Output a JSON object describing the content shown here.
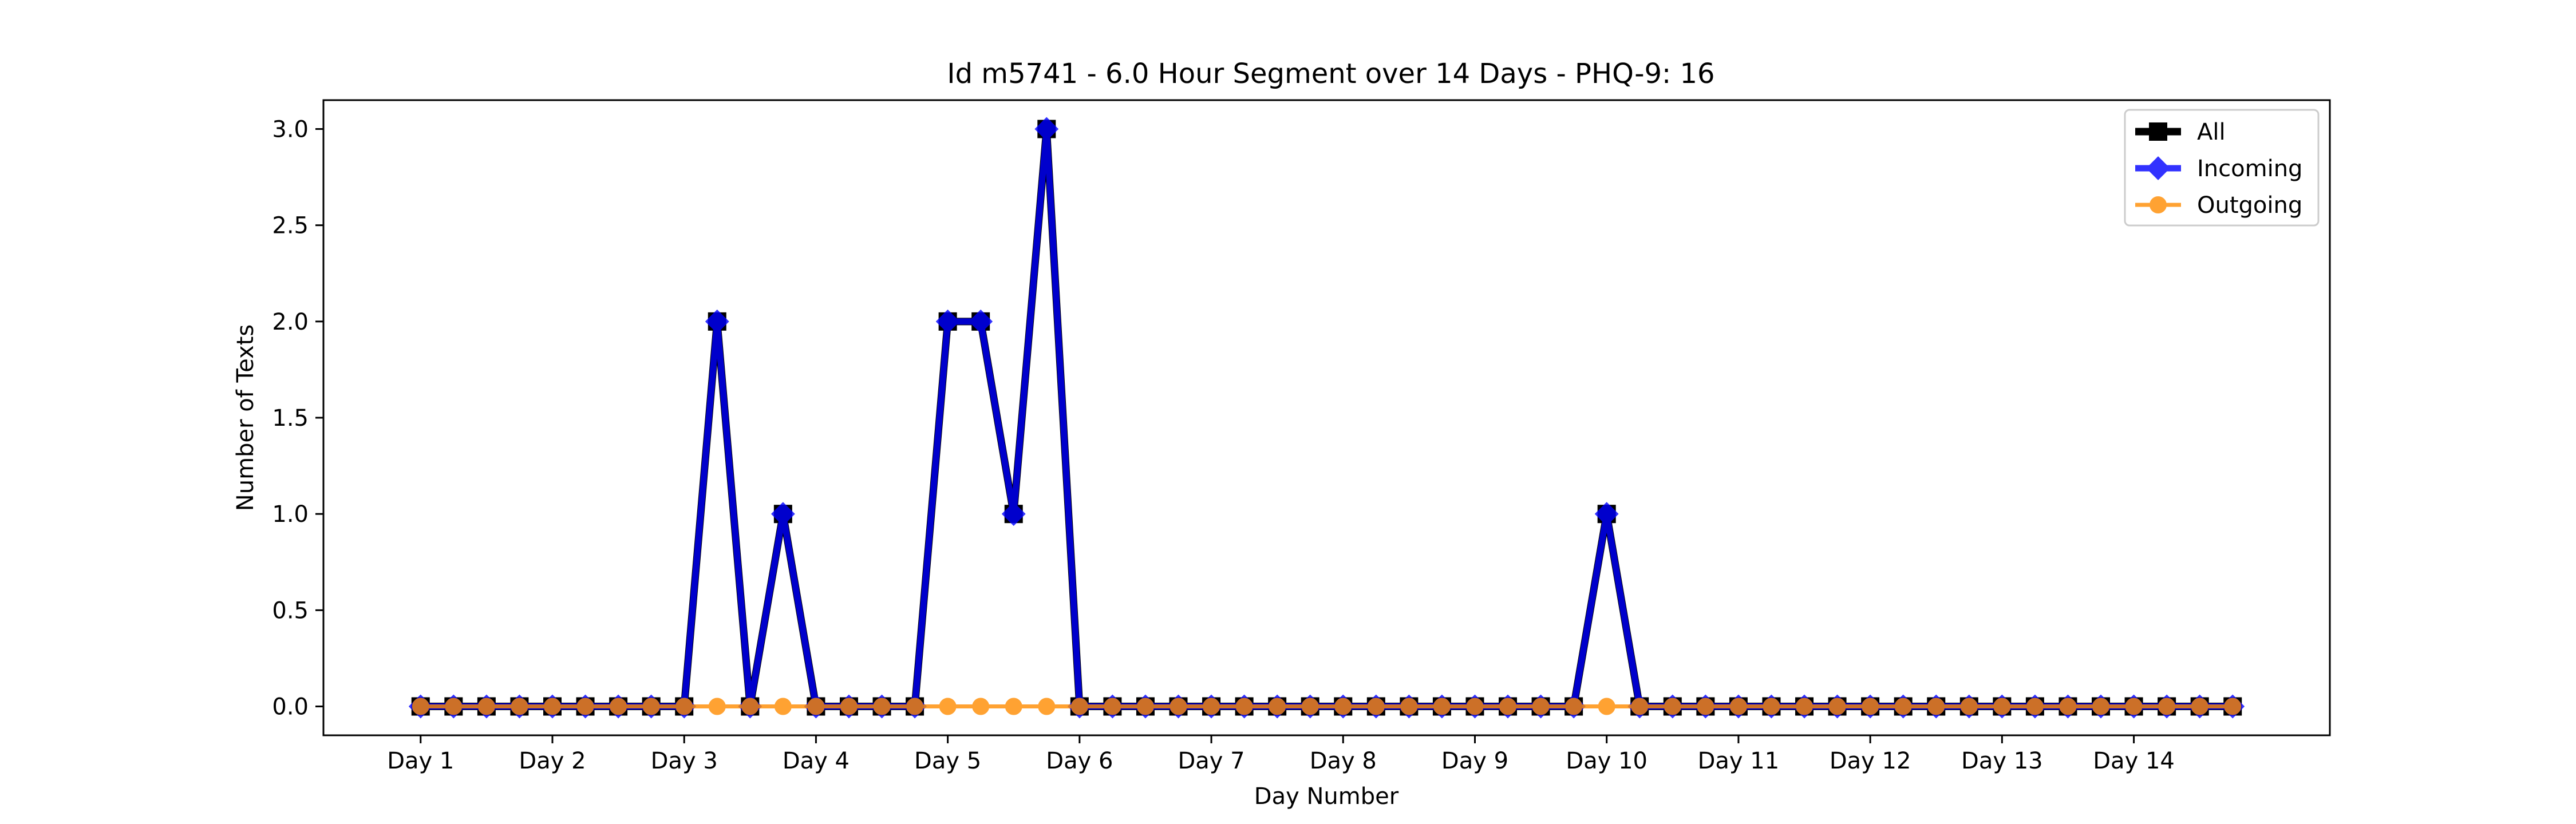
{
  "chart_data": {
    "type": "line",
    "title": "Id m5741 - 6.0 Hour Segment over 14 Days - PHQ-9: 16",
    "xlabel": "Day Number",
    "ylabel": "Number of Texts",
    "x_tick_labels": [
      "Day 1",
      "Day 2",
      "Day 3",
      "Day 4",
      "Day 5",
      "Day 6",
      "Day 7",
      "Day 8",
      "Day 9",
      "Day 10",
      "Day 11",
      "Day 12",
      "Day 13",
      "Day 14"
    ],
    "y_ticks": [
      "0.0",
      "0.5",
      "1.0",
      "1.5",
      "2.0",
      "2.5",
      "3.0"
    ],
    "y_tick_values": [
      0,
      0.5,
      1.0,
      1.5,
      2.0,
      2.5,
      3.0
    ],
    "xlim": [
      -2.95,
      57.95
    ],
    "ylim": [
      -0.15,
      3.15
    ],
    "grid": false,
    "legend_position": "top-right",
    "x": [
      0,
      1,
      2,
      3,
      4,
      5,
      6,
      7,
      8,
      9,
      10,
      11,
      12,
      13,
      14,
      15,
      16,
      17,
      18,
      19,
      20,
      21,
      22,
      23,
      24,
      25,
      26,
      27,
      28,
      29,
      30,
      31,
      32,
      33,
      34,
      35,
      36,
      37,
      38,
      39,
      40,
      41,
      42,
      43,
      44,
      45,
      46,
      47,
      48,
      49,
      50,
      51,
      52,
      53,
      54,
      55
    ],
    "series": [
      {
        "name": "All",
        "color": "#000000",
        "marker": "square",
        "values": [
          0,
          0,
          0,
          0,
          0,
          0,
          0,
          0,
          0,
          2,
          0,
          1,
          0,
          0,
          0,
          0,
          2,
          2,
          1,
          3,
          0,
          0,
          0,
          0,
          0,
          0,
          0,
          0,
          0,
          0,
          0,
          0,
          0,
          0,
          0,
          0,
          1,
          0,
          0,
          0,
          0,
          0,
          0,
          0,
          0,
          0,
          0,
          0,
          0,
          0,
          0,
          0,
          0,
          0,
          0,
          0
        ]
      },
      {
        "name": "Incoming",
        "color": "#0000ff",
        "marker": "diamond",
        "values": [
          0,
          0,
          0,
          0,
          0,
          0,
          0,
          0,
          0,
          2,
          0,
          1,
          0,
          0,
          0,
          0,
          2,
          2,
          1,
          3,
          0,
          0,
          0,
          0,
          0,
          0,
          0,
          0,
          0,
          0,
          0,
          0,
          0,
          0,
          0,
          0,
          1,
          0,
          0,
          0,
          0,
          0,
          0,
          0,
          0,
          0,
          0,
          0,
          0,
          0,
          0,
          0,
          0,
          0,
          0,
          0
        ]
      },
      {
        "name": "Outgoing",
        "color": "#ff8c00",
        "marker": "circle",
        "values": [
          0,
          0,
          0,
          0,
          0,
          0,
          0,
          0,
          0,
          0,
          0,
          0,
          0,
          0,
          0,
          0,
          0,
          0,
          0,
          0,
          0,
          0,
          0,
          0,
          0,
          0,
          0,
          0,
          0,
          0,
          0,
          0,
          0,
          0,
          0,
          0,
          0,
          0,
          0,
          0,
          0,
          0,
          0,
          0,
          0,
          0,
          0,
          0,
          0,
          0,
          0,
          0,
          0,
          0,
          0,
          0
        ]
      }
    ]
  }
}
